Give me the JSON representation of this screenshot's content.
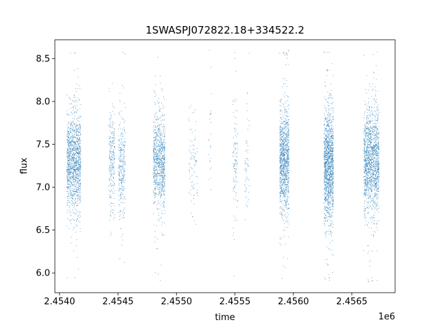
{
  "chart_data": {
    "type": "scatter",
    "title": "1SWASPJ072822.18+334522.2",
    "xlabel": "time",
    "ylabel": "flux",
    "x_offset_label": "1e6",
    "xlim": [
      2453960,
      2456870
    ],
    "ylim": [
      5.77,
      8.72
    ],
    "x_ticks": [
      2454000,
      2454500,
      2455000,
      2455500,
      2456000,
      2456500
    ],
    "x_tick_labels": [
      "2.4540",
      "2.4545",
      "2.4550",
      "2.4555",
      "2.4560",
      "2.4565"
    ],
    "y_ticks": [
      6.0,
      6.5,
      7.0,
      7.5,
      8.0,
      8.5
    ],
    "y_tick_labels": [
      "6.0",
      "6.5",
      "7.0",
      "7.5",
      "8.0",
      "8.5"
    ],
    "grid": false,
    "point_color": "#1f77b4",
    "series": [
      {
        "name": "",
        "clusters": [
          {
            "x_start": 2454060,
            "x_end": 2454180,
            "center": 7.3,
            "spread": 0.28,
            "count": 1300
          },
          {
            "x_start": 2454420,
            "x_end": 2454470,
            "center": 7.3,
            "spread": 0.28,
            "count": 260
          },
          {
            "x_start": 2454500,
            "x_end": 2454560,
            "center": 7.25,
            "spread": 0.3,
            "count": 300
          },
          {
            "x_start": 2454800,
            "x_end": 2454900,
            "center": 7.3,
            "spread": 0.28,
            "count": 900
          },
          {
            "x_start": 2455100,
            "x_end": 2455180,
            "center": 7.25,
            "spread": 0.25,
            "count": 90
          },
          {
            "x_start": 2455270,
            "x_end": 2455300,
            "center": 7.5,
            "spread": 0.4,
            "count": 25
          },
          {
            "x_start": 2455480,
            "x_end": 2455520,
            "center": 7.35,
            "spread": 0.35,
            "count": 120
          },
          {
            "x_start": 2455580,
            "x_end": 2455620,
            "center": 7.2,
            "spread": 0.3,
            "count": 60
          },
          {
            "x_start": 2455880,
            "x_end": 2455960,
            "center": 7.3,
            "spread": 0.3,
            "count": 1100
          },
          {
            "x_start": 2456260,
            "x_end": 2456340,
            "center": 7.25,
            "spread": 0.32,
            "count": 1400
          },
          {
            "x_start": 2456600,
            "x_end": 2456730,
            "center": 7.3,
            "spread": 0.3,
            "count": 1500
          }
        ]
      }
    ]
  }
}
